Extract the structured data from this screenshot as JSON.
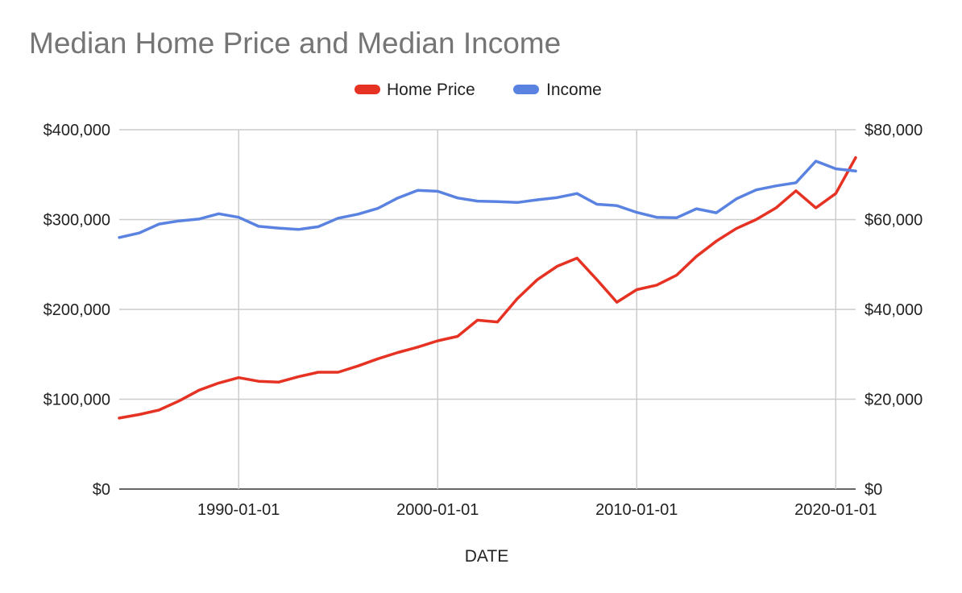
{
  "chart_data": {
    "type": "line",
    "title": "Median Home Price and Median Income",
    "xlabel": "DATE",
    "ylabel_left": "",
    "ylabel_right": "",
    "legend_position": "top-center",
    "grid": true,
    "x_ticks": [
      "1990-01-01",
      "2000-01-01",
      "2010-01-01",
      "2020-01-01"
    ],
    "x_tick_years": [
      1990,
      2000,
      2010,
      2020
    ],
    "xlim": [
      1984,
      2021
    ],
    "y_left": {
      "ylim": [
        0,
        400000
      ],
      "ticks": [
        "$0",
        "$100,000",
        "$200,000",
        "$300,000",
        "$400,000"
      ],
      "tick_values": [
        0,
        100000,
        200000,
        300000,
        400000
      ]
    },
    "y_right": {
      "ylim": [
        0,
        80000
      ],
      "ticks": [
        "$0",
        "$20,000",
        "$40,000",
        "$60,000",
        "$80,000"
      ],
      "tick_values": [
        0,
        20000,
        40000,
        60000,
        80000
      ]
    },
    "x": [
      1984,
      1985,
      1986,
      1987,
      1988,
      1989,
      1990,
      1991,
      1992,
      1993,
      1994,
      1995,
      1996,
      1997,
      1998,
      1999,
      2000,
      2001,
      2002,
      2003,
      2004,
      2005,
      2006,
      2007,
      2008,
      2009,
      2010,
      2011,
      2012,
      2013,
      2014,
      2015,
      2016,
      2017,
      2018,
      2019,
      2020,
      2021
    ],
    "series": [
      {
        "name": "Home Price",
        "color": "#e53223",
        "axis": "left",
        "values": [
          79000,
          83000,
          88000,
          98000,
          110000,
          118000,
          124000,
          120000,
          119000,
          125000,
          130000,
          130000,
          137000,
          145000,
          152000,
          158000,
          165000,
          170000,
          188000,
          186000,
          212000,
          233000,
          248000,
          257000,
          233000,
          208000,
          222000,
          227000,
          238000,
          259000,
          276000,
          290000,
          300000,
          313000,
          332000,
          313000,
          329000,
          369000
        ]
      },
      {
        "name": "Income",
        "color": "#5a82e0",
        "axis": "right",
        "values": [
          56000,
          57000,
          59000,
          59700,
          60100,
          61300,
          60500,
          58500,
          58100,
          57800,
          58400,
          60300,
          61200,
          62500,
          64800,
          66500,
          66300,
          64800,
          64100,
          64000,
          63800,
          64400,
          64900,
          65800,
          63400,
          63100,
          61600,
          60500,
          60400,
          62400,
          61500,
          64600,
          66600,
          67500,
          68200,
          73000,
          71300,
          70800
        ]
      }
    ]
  }
}
